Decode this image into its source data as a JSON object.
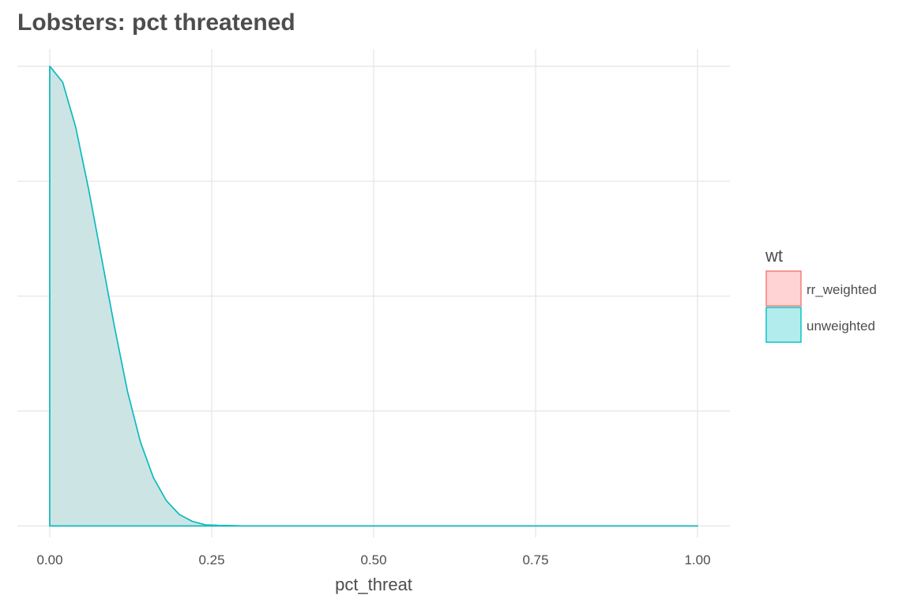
{
  "chart_data": {
    "type": "area",
    "title": "Lobsters: pct threatened",
    "xlabel": "pct_threat",
    "ylabel": "",
    "xlim": [
      -0.05,
      1.05
    ],
    "ylim": [
      -0.1,
      4.15
    ],
    "x_ticks": [
      0,
      0.25,
      0.5,
      0.75,
      1
    ],
    "x_tick_labels": [
      "0.00",
      "0.25",
      "0.50",
      "0.75",
      "1.00"
    ],
    "y_gridlines": [
      0,
      1,
      2,
      3,
      4
    ],
    "grid": true,
    "legend": {
      "title": "wt",
      "placement": "right",
      "entries": [
        {
          "label": "rr_weighted",
          "fill": "#ffd3d3",
          "stroke": "#f8766d"
        },
        {
          "label": "unweighted",
          "fill": "#b2ecec",
          "stroke": "#00bfc4"
        }
      ]
    },
    "series": [
      {
        "name": "rr_weighted",
        "color": "#f8766d",
        "fill": "#ffd3d3",
        "x": [
          0,
          0.02,
          0.04,
          0.06,
          0.08,
          0.1,
          0.12,
          0.14,
          0.16,
          0.18,
          0.2,
          0.22,
          0.24,
          0.26,
          0.3,
          0.4,
          0.5,
          0.6,
          0.7,
          0.8,
          0.9,
          1.0
        ],
        "values": [
          4.0,
          3.86,
          3.47,
          2.93,
          2.33,
          1.73,
          1.17,
          0.73,
          0.42,
          0.22,
          0.1,
          0.04,
          0.01,
          0.005,
          0,
          0,
          0,
          0,
          0,
          0,
          0,
          0
        ]
      },
      {
        "name": "unweighted",
        "color": "#00bfc4",
        "fill": "#b2ecec",
        "x": [
          0,
          0.02,
          0.04,
          0.06,
          0.08,
          0.1,
          0.12,
          0.14,
          0.16,
          0.18,
          0.2,
          0.22,
          0.24,
          0.26,
          0.3,
          0.4,
          0.5,
          0.6,
          0.7,
          0.8,
          0.9,
          1.0
        ],
        "values": [
          4.0,
          3.86,
          3.47,
          2.93,
          2.33,
          1.73,
          1.17,
          0.73,
          0.42,
          0.22,
          0.1,
          0.04,
          0.01,
          0.005,
          0,
          0,
          0,
          0,
          0,
          0,
          0,
          0
        ]
      }
    ]
  }
}
